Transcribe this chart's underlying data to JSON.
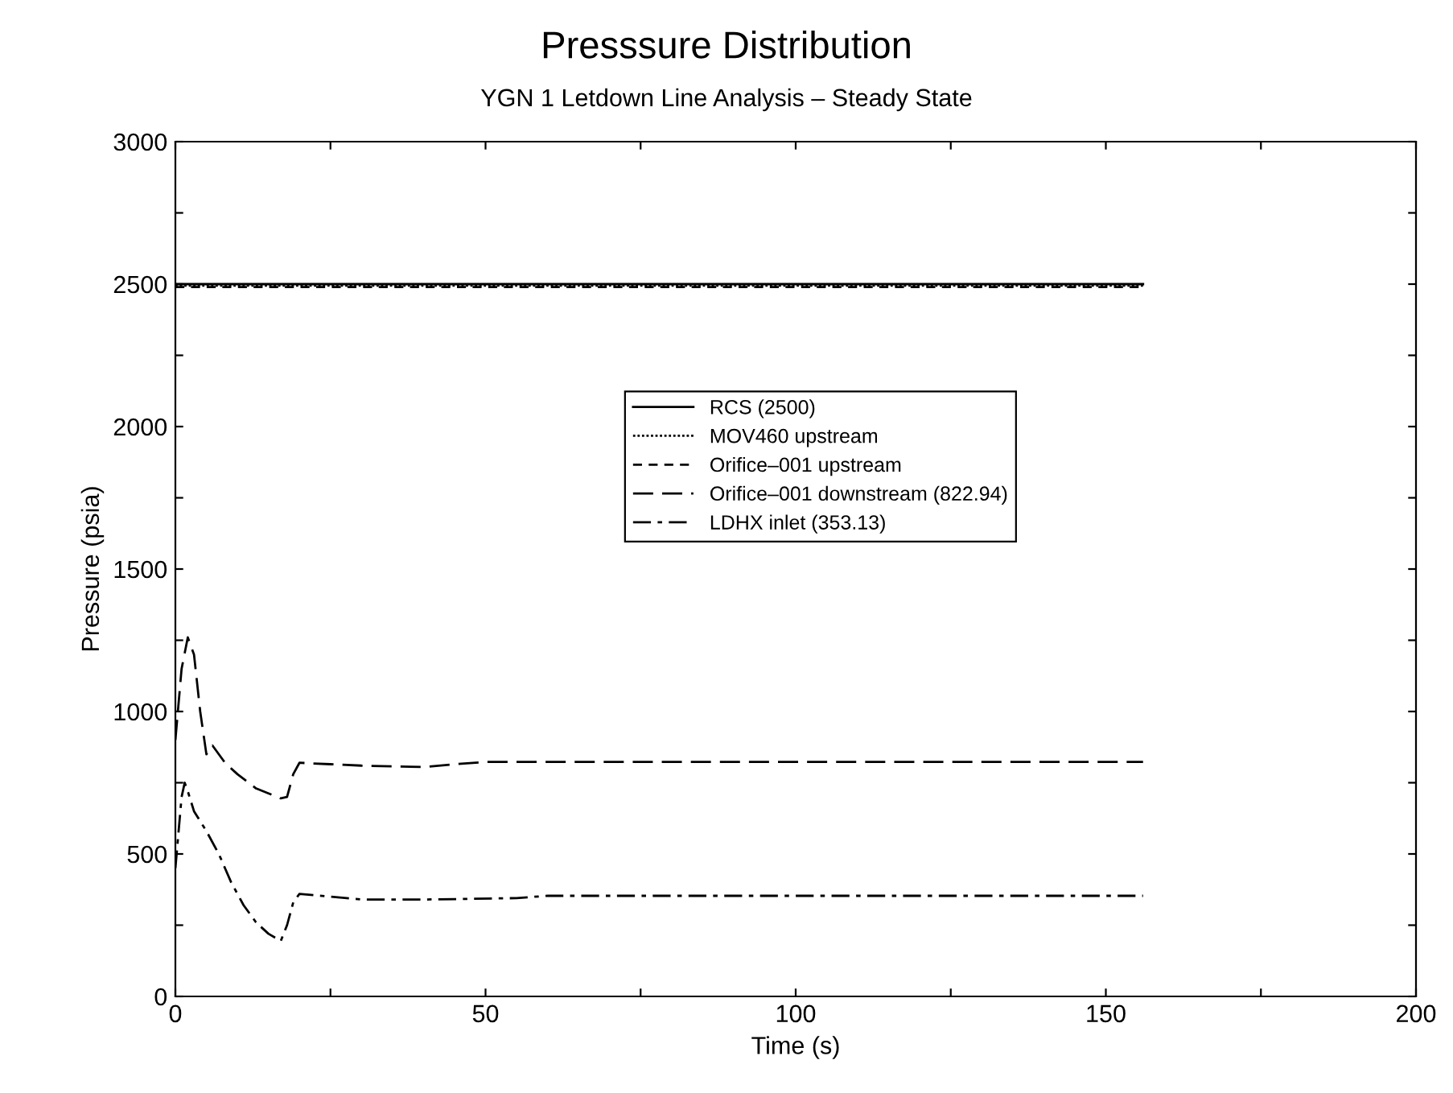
{
  "chart_data": {
    "type": "line",
    "title": "Presssure Distribution",
    "subtitle": "YGN 1 Letdown Line Analysis – Steady State",
    "xlabel": "Time (s)",
    "ylabel": "Pressure (psia)",
    "xlim": [
      0,
      200
    ],
    "ylim": [
      0,
      3000
    ],
    "xticks": [
      0,
      {
        "value": 25,
        "label": null
      },
      50,
      {
        "value": 75,
        "label": null
      },
      100,
      {
        "value": 125,
        "label": null
      },
      150,
      {
        "value": 175,
        "label": null
      },
      200
    ],
    "yticks": [
      0,
      {
        "value": 250,
        "label": null
      },
      500,
      {
        "value": 750,
        "label": null
      },
      1000,
      {
        "value": 1250,
        "label": null
      },
      1500,
      {
        "value": 1750,
        "label": null
      },
      2000,
      {
        "value": 2250,
        "label": null
      },
      2500,
      {
        "value": 2750,
        "label": null
      },
      3000
    ],
    "grid": false,
    "legend": "center",
    "marker": "none",
    "series": [
      {
        "name": "RCS (2500)",
        "color": "#000000",
        "line_style": "solid",
        "x": [
          0,
          156
        ],
        "values": [
          2500,
          2500
        ]
      },
      {
        "name": "MOV460 upstream",
        "color": "#000000",
        "line_style": "dotted",
        "x": [
          0,
          156
        ],
        "values": [
          2495,
          2495
        ]
      },
      {
        "name": "Orifice–001 upstream",
        "color": "#000000",
        "line_style": "dashed",
        "x": [
          0,
          156
        ],
        "values": [
          2490,
          2490
        ]
      },
      {
        "name": "Orifice–001 downstream (822.94)",
        "color": "#000000",
        "line_style": "longdash",
        "x": [
          0,
          1,
          2,
          3,
          4,
          5,
          6,
          8,
          10,
          13,
          17,
          18,
          19,
          20,
          25,
          30,
          40,
          45,
          50,
          156
        ],
        "values": [
          900,
          1150,
          1260,
          1200,
          1000,
          850,
          880,
          820,
          780,
          730,
          695,
          700,
          780,
          820,
          815,
          810,
          805,
          815,
          822.94,
          822.94
        ]
      },
      {
        "name": "LDHX inlet (353.13)",
        "color": "#000000",
        "line_style": "dashdot",
        "x": [
          0,
          1,
          1.5,
          2,
          3,
          5,
          7,
          9,
          11,
          13,
          15,
          17,
          18,
          19,
          20,
          25,
          30,
          40,
          55,
          60,
          156
        ],
        "values": [
          450,
          700,
          750,
          720,
          650,
          580,
          500,
          400,
          320,
          260,
          220,
          195,
          250,
          330,
          360,
          350,
          340,
          340,
          345,
          353.13,
          353.13
        ]
      }
    ]
  }
}
